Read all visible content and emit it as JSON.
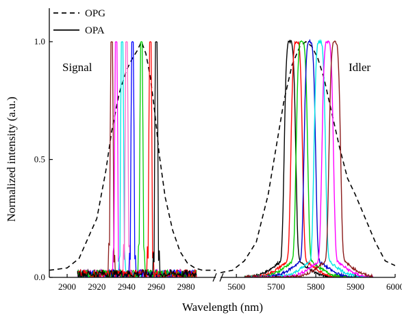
{
  "chart_data": {
    "type": "line",
    "xlabel": "Wavelength (nm)",
    "ylabel": "Normalized intensity (a.u.)",
    "ylim": [
      0,
      1.0
    ],
    "y_ticks": [
      "0.0",
      "0.5",
      "1.0"
    ],
    "x_break": true,
    "segments": [
      {
        "name": "signal",
        "xlim": [
          2888,
          3000
        ],
        "x_ticks": [
          2900,
          2920,
          2940,
          2960,
          2980
        ]
      },
      {
        "name": "idler",
        "xlim": [
          5560,
          6000
        ],
        "x_ticks": [
          5600,
          5700,
          5800,
          5900,
          6000
        ]
      }
    ],
    "legend": {
      "placement": "top-left",
      "entries": [
        {
          "label": "OPG",
          "style": "dashed"
        },
        {
          "label": "OPA",
          "style": "solid"
        }
      ]
    },
    "annotations": [
      "Signal",
      "Idler"
    ],
    "series": [
      {
        "style": "dashed",
        "color": "#000000",
        "segment": "signal",
        "x": [
          2888,
          2900,
          2908,
          2915,
          2920,
          2926,
          2930,
          2935,
          2940,
          2944,
          2947,
          2950,
          2953,
          2956,
          2959,
          2962,
          2966,
          2971,
          2976,
          2981,
          2986,
          2991,
          2996,
          3000
        ],
        "y": [
          0.03,
          0.04,
          0.08,
          0.18,
          0.25,
          0.45,
          0.62,
          0.78,
          0.88,
          0.93,
          0.96,
          1.0,
          0.95,
          0.85,
          0.7,
          0.52,
          0.34,
          0.2,
          0.11,
          0.06,
          0.04,
          0.03,
          0.03,
          0.03
        ]
      },
      {
        "style": "dashed",
        "color": "#000000",
        "segment": "idler",
        "x": [
          5560,
          5590,
          5620,
          5650,
          5680,
          5700,
          5720,
          5740,
          5760,
          5775,
          5790,
          5805,
          5820,
          5840,
          5860,
          5880,
          5900,
          5925,
          5950,
          5975,
          6000
        ],
        "y": [
          0.02,
          0.03,
          0.07,
          0.15,
          0.35,
          0.55,
          0.75,
          0.9,
          0.98,
          1.0,
          0.98,
          0.93,
          0.85,
          0.7,
          0.55,
          0.42,
          0.35,
          0.25,
          0.15,
          0.07,
          0.05
        ]
      }
    ],
    "signal_opa_peaks": [
      {
        "color": "#8b1a1a",
        "center": 2930
      },
      {
        "color": "#ff00ff",
        "center": 2933
      },
      {
        "color": "#00e5e5",
        "center": 2937
      },
      {
        "color": "#ff66cc",
        "center": 2940
      },
      {
        "color": "#0000ff",
        "center": 2944
      },
      {
        "color": "#00cc00",
        "center": 2950
      },
      {
        "color": "#ff0000",
        "center": 2956
      },
      {
        "color": "#000000",
        "center": 2960
      }
    ],
    "idler_opa_peaks": [
      {
        "color": "#000000",
        "center": 5735
      },
      {
        "color": "#ff0000",
        "center": 5752
      },
      {
        "color": "#00cc00",
        "center": 5765
      },
      {
        "color": "#0000cc",
        "center": 5785
      },
      {
        "color": "#00e5e5",
        "center": 5810
      },
      {
        "color": "#ff00ff",
        "center": 5830
      },
      {
        "color": "#8b1a1a",
        "center": 5848
      }
    ]
  }
}
